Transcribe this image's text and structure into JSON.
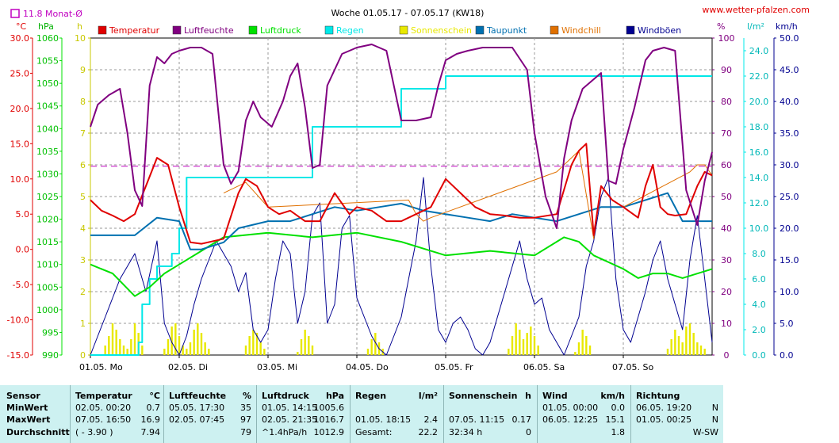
{
  "header": {
    "title": "Woche 01.05.17 - 07.05.17 (KW18)",
    "website": "www.wetter-pfalzen.com",
    "monthly_avg_label": "11.8 Monat-Ø"
  },
  "axes": {
    "temp_unit": "°C",
    "pressure_unit": "hPa",
    "sun_unit": "h",
    "humidity_unit": "%",
    "rain_unit": "l/m²",
    "wind_unit": "km/h",
    "temp_ticks": [
      "30.0",
      "25.0",
      "20.0",
      "15.0",
      "10.0",
      "5.0",
      "0.0",
      "-5.0",
      "-10.0",
      "-15.0"
    ],
    "pressure_ticks": [
      "1060",
      "1055",
      "1050",
      "1045",
      "1040",
      "1035",
      "1030",
      "1025",
      "1020",
      "1015",
      "1010",
      "1005",
      "1000",
      "995",
      "990"
    ],
    "sun_ticks": [
      "10",
      "9",
      "8",
      "7",
      "6",
      "5",
      "4",
      "3",
      "2",
      "1",
      "0"
    ],
    "humidity_ticks": [
      "100",
      "90",
      "80",
      "70",
      "60",
      "50",
      "40",
      "30",
      "20",
      "10",
      "0"
    ],
    "rain_ticks": [
      "24.0",
      "22.0",
      "20.0",
      "18.0",
      "16.0",
      "14.0",
      "12.0",
      "10.0",
      "8.0",
      "6.0",
      "4.0",
      "2.0",
      "0.0"
    ],
    "wind_ticks": [
      "50.0",
      "45.0",
      "40.0",
      "35.0",
      "30.0",
      "25.0",
      "20.0",
      "15.0",
      "10.0",
      "5.0",
      "0.0"
    ],
    "day_labels": [
      "01.05. Mo",
      "02.05. Di",
      "03.05. Mi",
      "04.05. Do",
      "05.05. Fr",
      "06.05. Sa",
      "07.05. So"
    ]
  },
  "chart_data": {
    "type": "line",
    "title": "Woche 01.05.17 - 07.05.17 (KW18)",
    "x_unit": "hours since 01.05. 00:00",
    "xlim": [
      0,
      168
    ],
    "reference_line": {
      "name": "Monat-Ø",
      "value": 11.8,
      "unit": "°C",
      "color": "#c000c0"
    },
    "colors": {
      "Temperatur": "#e00000",
      "Luftfeuchte": "#800080",
      "Luftdruck": "#00e000",
      "Regen": "#00e8e8",
      "Sonnenschein": "#e8e800",
      "Taupunkt": "#0070b0",
      "Windchill": "#e07000",
      "Windböen": "#000090"
    },
    "series": [
      {
        "name": "Temperatur",
        "unit": "°C",
        "x": [
          0,
          3,
          6,
          9,
          12,
          15,
          18,
          21,
          24,
          27,
          30,
          36,
          40,
          42,
          45,
          48,
          51,
          54,
          58,
          62,
          66,
          70,
          72,
          76,
          80,
          84,
          88,
          92,
          96,
          100,
          104,
          108,
          112,
          116,
          120,
          126,
          130,
          132,
          134,
          136,
          138,
          141,
          144,
          148,
          150,
          152,
          154,
          156,
          158,
          161,
          164,
          166,
          168
        ],
        "y": [
          7,
          5.5,
          4.8,
          4,
          5,
          9,
          13,
          12,
          6,
          1,
          0.8,
          1.5,
          8,
          10,
          9,
          6,
          5,
          5.5,
          4,
          4,
          8,
          5,
          6,
          5.5,
          4,
          4,
          5,
          6,
          10,
          8,
          6,
          5,
          4.8,
          4.5,
          4.5,
          5,
          12,
          14,
          15,
          2,
          9,
          7,
          6,
          4.5,
          9,
          12,
          6,
          5,
          4.8,
          5,
          9,
          11,
          10.5
        ]
      },
      {
        "name": "Luftfeuchte",
        "unit": "%",
        "x": [
          0,
          2,
          5,
          8,
          10,
          12,
          14,
          16,
          18,
          20,
          22,
          24,
          27,
          30,
          33,
          36,
          38,
          40,
          42,
          44,
          46,
          49,
          52,
          54,
          56,
          58,
          60,
          62,
          64,
          66,
          68,
          70,
          72,
          76,
          80,
          84,
          88,
          92,
          94,
          96,
          99,
          102,
          106,
          110,
          114,
          118,
          120,
          123,
          126,
          128,
          130,
          133,
          136,
          138,
          140,
          142,
          144,
          147,
          150,
          152,
          155,
          158,
          161,
          164,
          166,
          168
        ],
        "y": [
          72,
          79,
          82,
          84,
          70,
          52,
          47,
          85,
          94,
          92,
          95,
          96,
          97,
          97,
          95,
          60,
          54,
          58,
          74,
          80,
          75,
          72,
          80,
          88,
          92,
          78,
          59,
          60,
          85,
          90,
          95,
          96,
          97,
          98,
          96,
          74,
          74,
          75,
          85,
          93,
          95,
          96,
          97,
          97,
          97,
          90,
          70,
          50,
          40,
          62,
          74,
          84,
          87,
          89,
          55,
          54,
          65,
          78,
          93,
          96,
          97,
          96,
          52,
          41,
          55,
          64
        ]
      },
      {
        "name": "Luftdruck",
        "unit": "hPa",
        "x": [
          0,
          6,
          12,
          16,
          20,
          24,
          30,
          36,
          48,
          60,
          72,
          84,
          96,
          108,
          120,
          128,
          132,
          136,
          144,
          148,
          152,
          156,
          160,
          168
        ],
        "y": [
          1010,
          1008,
          1003,
          1005,
          1008,
          1010,
          1013,
          1016,
          1017,
          1016,
          1017,
          1015,
          1012,
          1013,
          1012,
          1016,
          1015,
          1012,
          1009,
          1007,
          1008,
          1008,
          1007,
          1009
        ]
      },
      {
        "name": "Regen",
        "unit": "l/m²",
        "x": [
          0,
          12,
          13,
          14,
          16,
          18,
          20,
          22,
          24,
          26,
          36,
          48,
          60,
          72,
          84,
          96,
          108,
          120,
          132,
          144,
          156,
          168
        ],
        "y": [
          0,
          0,
          1,
          4,
          6,
          7,
          7,
          8,
          10,
          14,
          14,
          14,
          18,
          18,
          21,
          22,
          22,
          22,
          22,
          22,
          22,
          22
        ]
      },
      {
        "name": "Taupunkt",
        "unit": "°C",
        "x": [
          0,
          12,
          18,
          24,
          27,
          30,
          36,
          40,
          48,
          54,
          60,
          66,
          72,
          78,
          84,
          90,
          96,
          102,
          108,
          114,
          120,
          126,
          132,
          138,
          144,
          150,
          156,
          160,
          164,
          168
        ],
        "y": [
          2,
          2,
          4.5,
          4,
          0,
          0,
          1,
          3,
          4,
          4,
          5,
          6,
          5.5,
          6,
          6.5,
          5.5,
          5,
          4.5,
          4,
          5,
          4.5,
          4,
          5,
          6,
          6,
          7,
          8,
          4,
          4,
          4
        ]
      },
      {
        "name": "Windchill",
        "unit": "°C",
        "x": [
          36,
          42,
          48,
          86,
          88,
          90,
          92,
          126,
          128,
          130,
          132,
          136,
          138,
          141,
          144,
          162,
          164,
          166,
          168
        ],
        "y": [
          8,
          9.5,
          6,
          7,
          5,
          4,
          4.5,
          11,
          12,
          13,
          14,
          1.5,
          9,
          7,
          6,
          11,
          12,
          12,
          10.5
        ]
      },
      {
        "name": "Windböen",
        "unit": "km/h",
        "x": [
          0,
          2,
          4,
          6,
          8,
          10,
          12,
          15,
          18,
          20,
          22,
          24,
          26,
          28,
          30,
          32,
          34,
          36,
          38,
          40,
          42,
          44,
          46,
          48,
          50,
          52,
          54,
          56,
          58,
          60,
          62,
          64,
          66,
          68,
          70,
          72,
          74,
          76,
          78,
          80,
          82,
          84,
          86,
          88,
          90,
          92,
          94,
          96,
          98,
          100,
          102,
          104,
          106,
          108,
          110,
          112,
          114,
          116,
          118,
          120,
          122,
          124,
          126,
          128,
          130,
          132,
          134,
          136,
          138,
          140,
          142,
          144,
          146,
          148,
          150,
          152,
          154,
          156,
          158,
          160,
          162,
          164,
          166,
          168
        ],
        "y": [
          0,
          3,
          6,
          9,
          12,
          14,
          16,
          10,
          18,
          5,
          2,
          0,
          3,
          8,
          12,
          15,
          18,
          16,
          14,
          10,
          13,
          4,
          2,
          4,
          12,
          18,
          16,
          5,
          10,
          22,
          24,
          5,
          8,
          20,
          22,
          9,
          6,
          3,
          1,
          0,
          3,
          6,
          12,
          18,
          28,
          14,
          4,
          2,
          5,
          6,
          4,
          1,
          0,
          2,
          6,
          10,
          14,
          18,
          12,
          8,
          9,
          4,
          2,
          0,
          3,
          6,
          14,
          18,
          25,
          28,
          12,
          4,
          2,
          6,
          10,
          15,
          18,
          12,
          8,
          4,
          15,
          22,
          12,
          2
        ]
      },
      {
        "name": "Sonnenschein",
        "unit": "h",
        "x": [
          4,
          5,
          6,
          7,
          8,
          9,
          10,
          11,
          12,
          13,
          14,
          20,
          21,
          22,
          23,
          24,
          25,
          26,
          27,
          28,
          29,
          30,
          31,
          32,
          33,
          42,
          43,
          44,
          45,
          46,
          47,
          54,
          55,
          56,
          57,
          58,
          59,
          60,
          61,
          62,
          63,
          64,
          65,
          66,
          67,
          68,
          69,
          70,
          71,
          72,
          73,
          74,
          75,
          76,
          77,
          78,
          79,
          80,
          81,
          82,
          83,
          84,
          85,
          86,
          87,
          88,
          89,
          90,
          91,
          92,
          93,
          94,
          95,
          96,
          97,
          98,
          99,
          100,
          101,
          102,
          103,
          104,
          105,
          106,
          107,
          108,
          109,
          110,
          111,
          112,
          113,
          114,
          115,
          116,
          117,
          118,
          119,
          120,
          121,
          122,
          123,
          124,
          125,
          126,
          127,
          128,
          129,
          130,
          131,
          132,
          133,
          134,
          135,
          136,
          137,
          138,
          139,
          140,
          141,
          142,
          143,
          144,
          145,
          146,
          147,
          148,
          149,
          150,
          151,
          152,
          153,
          154,
          155,
          156,
          157,
          158,
          159,
          160,
          161,
          162,
          163,
          164,
          165,
          166,
          167
        ],
        "y": [
          0.3,
          0.6,
          1,
          0.8,
          0.5,
          0.3,
          0.2,
          0.5,
          1,
          0.7,
          0.3,
          0.2,
          0.5,
          0.9,
          1,
          0.6,
          0.3,
          0.2,
          0.4,
          0.8,
          1,
          0.7,
          0.4,
          0.2,
          0,
          0.3,
          0.6,
          0.8,
          0.7,
          0.4,
          0.2,
          0,
          0,
          0.1,
          0.5,
          0.8,
          0.6,
          0.3,
          0,
          0,
          0,
          0,
          0,
          0,
          0,
          0,
          0,
          0,
          0,
          0,
          0,
          0,
          0.2,
          0.5,
          0.7,
          0.4,
          0.2,
          0,
          0,
          0,
          0,
          0,
          0,
          0,
          0,
          0,
          0,
          0,
          0,
          0,
          0,
          0,
          0,
          0,
          0,
          0,
          0,
          0,
          0,
          0,
          0,
          0,
          0,
          0,
          0,
          0,
          0,
          0,
          0,
          0,
          0.2,
          0.6,
          1,
          0.8,
          0.5,
          0.7,
          0.9,
          0.6,
          0.3,
          0,
          0,
          0,
          0,
          0,
          0,
          0,
          0,
          0,
          0.1,
          0.4,
          0.8,
          0.6,
          0.3,
          0,
          0,
          0,
          0,
          0,
          0,
          0,
          0,
          0,
          0,
          0,
          0,
          0,
          0,
          0,
          0,
          0,
          0,
          0,
          0,
          0.2,
          0.5,
          0.8,
          0.6,
          0.4,
          0.9,
          1,
          0.7,
          0.4,
          0.3,
          0.2,
          0
        ]
      }
    ]
  },
  "legend": [
    {
      "label": "Temperatur",
      "color": "#e00000"
    },
    {
      "label": "Luftfeuchte",
      "color": "#800080"
    },
    {
      "label": "Luftdruck",
      "color": "#00e000"
    },
    {
      "label": "Regen",
      "color": "#00e8e8"
    },
    {
      "label": "Sonnenschein",
      "color": "#e8e800"
    },
    {
      "label": "Taupunkt",
      "color": "#0070b0"
    },
    {
      "label": "Windchill",
      "color": "#e07000"
    },
    {
      "label": "Windböen",
      "color": "#000090"
    }
  ],
  "table": {
    "row_labels": [
      "Sensor",
      "MinWert",
      "MaxWert",
      "Durchschnitt"
    ],
    "temperature": {
      "title": "Temperatur",
      "unit": "°C",
      "min_time": "02.05. 00:20",
      "min_val": "0.7",
      "max_time": "07.05. 16:50",
      "max_val": "16.9",
      "avg_note": "( - 3.90 )",
      "avg_val": "7.94"
    },
    "humidity": {
      "title": "Luftfeuchte",
      "unit": "%",
      "min_time": "05.05. 17:30",
      "min_val": "35",
      "max_time": "02.05. 07:45",
      "max_val": "97",
      "avg_note": "",
      "avg_val": "79"
    },
    "pressure": {
      "title": "Luftdruck",
      "unit": "hPa",
      "min_time": "01.05. 14:15",
      "min_val": "1005.6",
      "max_time": "02.05. 21:35",
      "max_val": "1016.7",
      "avg_note": "^1.4hPa/h",
      "avg_val": "1012.9"
    },
    "rain": {
      "title": "Regen",
      "unit": "l/m²",
      "min_time": "",
      "min_val": "",
      "max_time": "01.05. 18:15",
      "max_val": "2.4",
      "avg_note": "Gesamt:",
      "avg_val": "22.2"
    },
    "sun": {
      "title": "Sonnenschein",
      "unit": "h",
      "min_time": "",
      "min_val": "",
      "max_time": "07.05. 11:15",
      "max_val": "0.17",
      "avg_note": "32:34 h",
      "avg_val": "0"
    },
    "wind": {
      "title": "Wind",
      "unit": "km/h",
      "min_time": "01.05. 00:00",
      "min_val": "0.0",
      "max_time": "06.05. 12:25",
      "max_val": "15.1",
      "avg_note": "",
      "avg_val": "1.8"
    },
    "direction": {
      "title": "Richtung",
      "unit": "",
      "min_time": "06.05. 19:20",
      "min_val": "N",
      "max_time": "01.05. 00:25",
      "max_val": "N",
      "avg_note": "",
      "avg_val": "W-SW"
    }
  }
}
